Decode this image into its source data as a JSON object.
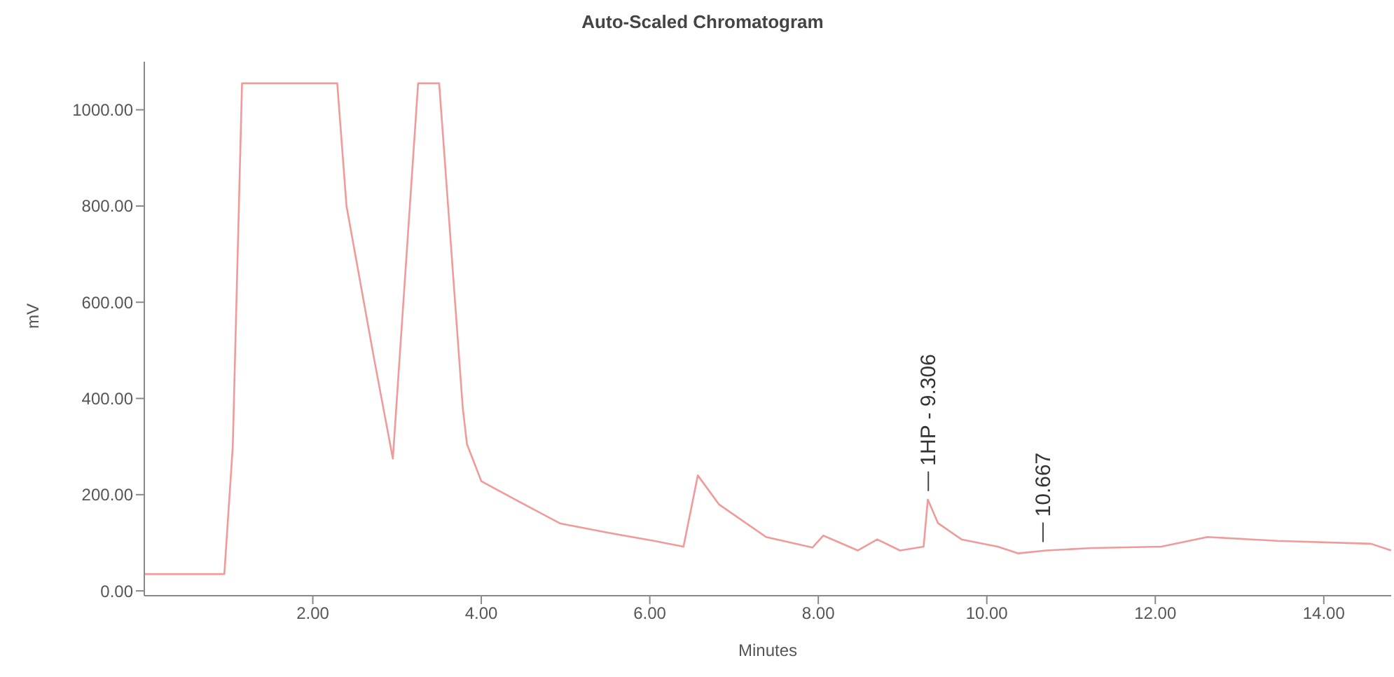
{
  "chart_data": {
    "type": "line",
    "title": "Auto-Scaled Chromatogram",
    "xlabel": "Minutes",
    "ylabel": "mV",
    "x": [
      0,
      0.95,
      1.05,
      1.16,
      2.29,
      2.4,
      2.73,
      2.95,
      3.25,
      3.5,
      3.78,
      3.83,
      4.0,
      4.4,
      4.94,
      5.5,
      6.05,
      6.4,
      6.57,
      6.82,
      7.38,
      7.93,
      8.06,
      8.47,
      8.7,
      8.97,
      9.25,
      9.3,
      9.42,
      9.7,
      10.13,
      10.37,
      10.7,
      11.24,
      12.07,
      12.62,
      13.45,
      14.56,
      14.8
    ],
    "series": [
      {
        "color": "#f09a9a",
        "values": [
          35,
          35,
          300,
          1055,
          1055,
          800,
          480,
          275,
          1055,
          1055,
          380,
          305,
          228,
          190,
          140,
          121,
          104,
          92,
          240,
          180,
          112,
          90,
          115,
          84,
          107,
          84,
          92,
          190,
          141,
          107,
          92,
          78,
          84,
          89,
          92,
          112,
          104,
          98,
          84
        ]
      }
    ],
    "xlim": [
      0,
      14.8
    ],
    "ylim": [
      -10,
      1100
    ],
    "xticks": [
      {
        "value": 2,
        "label": "2.00"
      },
      {
        "value": 4,
        "label": "4.00"
      },
      {
        "value": 6,
        "label": "6.00"
      },
      {
        "value": 8,
        "label": "8.00"
      },
      {
        "value": 10,
        "label": "10.00"
      },
      {
        "value": 12,
        "label": "12.00"
      },
      {
        "value": 14,
        "label": "14.00"
      }
    ],
    "yticks": [
      {
        "value": 0,
        "label": "0.00"
      },
      {
        "value": 200,
        "label": "200.00"
      },
      {
        "value": 400,
        "label": "400.00"
      },
      {
        "value": 600,
        "label": "600.00"
      },
      {
        "value": 800,
        "label": "800.00"
      },
      {
        "value": 1000,
        "label": "1000.00"
      }
    ],
    "annotations": [
      {
        "text": "1HP - 9.306",
        "x": 9.306,
        "y": 190
      },
      {
        "text": "10.667",
        "x": 10.667,
        "y": 84
      }
    ],
    "grid": false,
    "legend": false,
    "marker": "none",
    "line_style": "solid"
  }
}
